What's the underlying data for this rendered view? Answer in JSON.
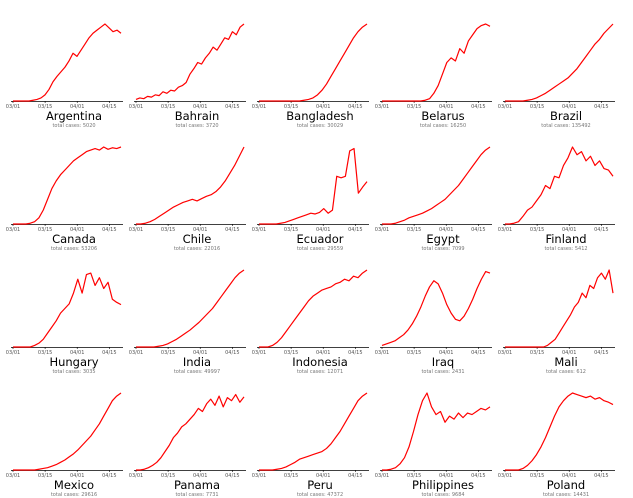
{
  "colors": {
    "line": "#ff0000",
    "axis": "#000000"
  },
  "chart_data": [
    {
      "type": "line",
      "title": "Argentina",
      "subtitle": "total cases: 5020",
      "xticks": [
        "03/01",
        "03/15",
        "04/01",
        "04/15"
      ],
      "ylim": [
        0,
        1
      ],
      "values": [
        0,
        0,
        0,
        0,
        0,
        0.01,
        0.02,
        0.04,
        0.08,
        0.15,
        0.25,
        0.32,
        0.38,
        0.44,
        0.52,
        0.62,
        0.58,
        0.66,
        0.74,
        0.82,
        0.88,
        0.92,
        0.96,
        1.0,
        0.95,
        0.9,
        0.92,
        0.88
      ]
    },
    {
      "type": "line",
      "title": "Bahrain",
      "subtitle": "total cases: 3720",
      "xticks": [
        "03/01",
        "03/15",
        "04/01",
        "04/15"
      ],
      "ylim": [
        0,
        1
      ],
      "values": [
        0.02,
        0.04,
        0.03,
        0.06,
        0.05,
        0.08,
        0.07,
        0.12,
        0.1,
        0.14,
        0.13,
        0.18,
        0.2,
        0.24,
        0.35,
        0.42,
        0.5,
        0.48,
        0.56,
        0.62,
        0.7,
        0.66,
        0.74,
        0.82,
        0.8,
        0.9,
        0.86,
        0.96,
        1.0
      ]
    },
    {
      "type": "line",
      "title": "Bangladesh",
      "subtitle": "total cases: 30029",
      "xticks": [
        "03/01",
        "03/15",
        "04/01",
        "04/15"
      ],
      "ylim": [
        0,
        1
      ],
      "values": [
        0,
        0,
        0,
        0,
        0,
        0,
        0,
        0,
        0,
        0,
        0.01,
        0.02,
        0.04,
        0.08,
        0.14,
        0.22,
        0.32,
        0.42,
        0.52,
        0.62,
        0.72,
        0.82,
        0.9,
        0.96,
        1.0
      ]
    },
    {
      "type": "line",
      "title": "Belarus",
      "subtitle": "total cases: 16250",
      "xticks": [
        "03/01",
        "03/15",
        "04/01",
        "04/15"
      ],
      "ylim": [
        0,
        1
      ],
      "values": [
        0,
        0,
        0,
        0,
        0,
        0,
        0,
        0,
        0,
        0,
        0.01,
        0.03,
        0.1,
        0.2,
        0.35,
        0.5,
        0.56,
        0.52,
        0.68,
        0.62,
        0.78,
        0.86,
        0.94,
        0.98,
        1.0,
        0.97
      ]
    },
    {
      "type": "line",
      "title": "Brazil",
      "subtitle": "total cases: 135492",
      "xticks": [
        "03/01",
        "03/15",
        "04/01",
        "04/15"
      ],
      "ylim": [
        0,
        1
      ],
      "values": [
        0,
        0,
        0,
        0,
        0,
        0.01,
        0.02,
        0.04,
        0.07,
        0.1,
        0.14,
        0.18,
        0.22,
        0.26,
        0.3,
        0.36,
        0.42,
        0.5,
        0.58,
        0.66,
        0.74,
        0.8,
        0.88,
        0.94,
        1.0
      ]
    },
    {
      "type": "line",
      "title": "Canada",
      "subtitle": "total cases: 53206",
      "xticks": [
        "03/01",
        "03/15",
        "04/01",
        "04/15"
      ],
      "ylim": [
        0,
        1
      ],
      "values": [
        0,
        0,
        0,
        0,
        0.01,
        0.03,
        0.08,
        0.18,
        0.32,
        0.46,
        0.56,
        0.64,
        0.7,
        0.76,
        0.82,
        0.86,
        0.9,
        0.94,
        0.96,
        0.98,
        0.96,
        1.0,
        0.97,
        0.99,
        0.98,
        1.0
      ]
    },
    {
      "type": "line",
      "title": "Chile",
      "subtitle": "total cases: 22016",
      "xticks": [
        "03/01",
        "03/15",
        "04/01",
        "04/15"
      ],
      "ylim": [
        0,
        1
      ],
      "values": [
        0,
        0,
        0.01,
        0.03,
        0.06,
        0.1,
        0.14,
        0.18,
        0.22,
        0.25,
        0.28,
        0.3,
        0.32,
        0.3,
        0.33,
        0.36,
        0.38,
        0.42,
        0.48,
        0.56,
        0.66,
        0.76,
        0.88,
        1.0
      ]
    },
    {
      "type": "line",
      "title": "Ecuador",
      "subtitle": "total cases: 29559",
      "xticks": [
        "03/01",
        "03/15",
        "04/01",
        "04/15"
      ],
      "ylim": [
        0,
        1
      ],
      "values": [
        0,
        0,
        0,
        0,
        0,
        0.01,
        0.02,
        0.04,
        0.06,
        0.08,
        0.1,
        0.12,
        0.14,
        0.13,
        0.15,
        0.2,
        0.14,
        0.18,
        0.62,
        0.6,
        0.62,
        0.95,
        0.98,
        0.4,
        0.48,
        0.55
      ]
    },
    {
      "type": "line",
      "title": "Egypt",
      "subtitle": "total cases: 7099",
      "xticks": [
        "03/01",
        "03/15",
        "04/01",
        "04/15"
      ],
      "ylim": [
        0,
        1
      ],
      "values": [
        0,
        0,
        0,
        0.01,
        0.03,
        0.05,
        0.08,
        0.1,
        0.12,
        0.14,
        0.17,
        0.2,
        0.24,
        0.28,
        0.32,
        0.38,
        0.44,
        0.5,
        0.58,
        0.66,
        0.74,
        0.82,
        0.9,
        0.96,
        1.0
      ]
    },
    {
      "type": "line",
      "title": "Finland",
      "subtitle": "total cases: 5412",
      "xticks": [
        "03/01",
        "03/15",
        "04/01",
        "04/15"
      ],
      "ylim": [
        0,
        1
      ],
      "values": [
        0,
        0,
        0.01,
        0.03,
        0.1,
        0.18,
        0.22,
        0.3,
        0.38,
        0.5,
        0.46,
        0.62,
        0.6,
        0.76,
        0.86,
        1.0,
        0.9,
        0.94,
        0.82,
        0.88,
        0.76,
        0.82,
        0.72,
        0.7,
        0.62
      ]
    },
    {
      "type": "line",
      "title": "Hungary",
      "subtitle": "total cases: 3035",
      "xticks": [
        "03/01",
        "03/15",
        "04/01",
        "04/15"
      ],
      "ylim": [
        0,
        1
      ],
      "values": [
        0,
        0,
        0,
        0,
        0,
        0.02,
        0.05,
        0.1,
        0.18,
        0.26,
        0.34,
        0.44,
        0.5,
        0.56,
        0.7,
        0.88,
        0.7,
        0.94,
        0.96,
        0.8,
        0.9,
        0.76,
        0.84,
        0.62,
        0.58,
        0.55
      ]
    },
    {
      "type": "line",
      "title": "India",
      "subtitle": "total cases: 49997",
      "xticks": [
        "03/01",
        "03/15",
        "04/01",
        "04/15"
      ],
      "ylim": [
        0,
        1
      ],
      "values": [
        0,
        0,
        0,
        0,
        0,
        0.01,
        0.02,
        0.04,
        0.07,
        0.1,
        0.14,
        0.18,
        0.22,
        0.27,
        0.32,
        0.38,
        0.44,
        0.5,
        0.58,
        0.66,
        0.74,
        0.82,
        0.9,
        0.96,
        1.0
      ]
    },
    {
      "type": "line",
      "title": "Indonesia",
      "subtitle": "total cases: 12071",
      "xticks": [
        "03/01",
        "03/15",
        "04/01",
        "04/15"
      ],
      "ylim": [
        0,
        1
      ],
      "values": [
        0,
        0,
        0,
        0.02,
        0.06,
        0.12,
        0.2,
        0.28,
        0.36,
        0.44,
        0.52,
        0.6,
        0.66,
        0.7,
        0.74,
        0.76,
        0.78,
        0.82,
        0.84,
        0.88,
        0.86,
        0.92,
        0.9,
        0.96,
        1.0
      ]
    },
    {
      "type": "line",
      "title": "Iraq",
      "subtitle": "total cases: 2431",
      "xticks": [
        "03/01",
        "03/15",
        "04/01",
        "04/15"
      ],
      "ylim": [
        0,
        1
      ],
      "values": [
        0.02,
        0.04,
        0.06,
        0.08,
        0.12,
        0.16,
        0.22,
        0.3,
        0.4,
        0.52,
        0.66,
        0.78,
        0.86,
        0.82,
        0.7,
        0.55,
        0.44,
        0.36,
        0.34,
        0.4,
        0.5,
        0.62,
        0.76,
        0.88,
        0.98,
        0.96
      ]
    },
    {
      "type": "line",
      "title": "Mali",
      "subtitle": "total cases: 612",
      "xticks": [
        "03/01",
        "03/15",
        "04/01",
        "04/15"
      ],
      "ylim": [
        0,
        1
      ],
      "values": [
        0,
        0,
        0,
        0,
        0,
        0,
        0,
        0,
        0,
        0,
        0,
        0.02,
        0.06,
        0.1,
        0.18,
        0.26,
        0.34,
        0.42,
        0.52,
        0.58,
        0.7,
        0.64,
        0.8,
        0.76,
        0.9,
        0.96,
        0.88,
        1.0,
        0.7
      ]
    },
    {
      "type": "line",
      "title": "Mexico",
      "subtitle": "total cases: 29616",
      "xticks": [
        "03/01",
        "03/15",
        "04/01",
        "04/15"
      ],
      "ylim": [
        0,
        1
      ],
      "values": [
        0,
        0,
        0,
        0,
        0,
        0,
        0.01,
        0.02,
        0.03,
        0.05,
        0.07,
        0.1,
        0.13,
        0.17,
        0.21,
        0.26,
        0.32,
        0.38,
        0.44,
        0.52,
        0.6,
        0.7,
        0.8,
        0.9,
        0.96,
        1.0
      ]
    },
    {
      "type": "line",
      "title": "Panama",
      "subtitle": "total cases: 7731",
      "xticks": [
        "03/01",
        "03/15",
        "04/01",
        "04/15"
      ],
      "ylim": [
        0,
        1
      ],
      "values": [
        0,
        0,
        0.01,
        0.03,
        0.06,
        0.1,
        0.16,
        0.24,
        0.32,
        0.42,
        0.48,
        0.56,
        0.6,
        0.66,
        0.72,
        0.8,
        0.76,
        0.86,
        0.92,
        0.84,
        0.96,
        0.82,
        0.94,
        0.9,
        0.98,
        0.88,
        0.95
      ]
    },
    {
      "type": "line",
      "title": "Peru",
      "subtitle": "total cases: 47372",
      "xticks": [
        "03/01",
        "03/15",
        "04/01",
        "04/15"
      ],
      "ylim": [
        0,
        1
      ],
      "values": [
        0,
        0,
        0,
        0,
        0.01,
        0.02,
        0.04,
        0.07,
        0.1,
        0.14,
        0.16,
        0.18,
        0.2,
        0.22,
        0.24,
        0.28,
        0.34,
        0.42,
        0.5,
        0.6,
        0.7,
        0.8,
        0.9,
        0.96,
        1.0
      ]
    },
    {
      "type": "line",
      "title": "Philippines",
      "subtitle": "total cases: 9684",
      "xticks": [
        "03/01",
        "03/15",
        "04/01",
        "04/15"
      ],
      "ylim": [
        0,
        1
      ],
      "values": [
        0,
        0,
        0.01,
        0.03,
        0.08,
        0.16,
        0.3,
        0.5,
        0.72,
        0.9,
        1.0,
        0.82,
        0.72,
        0.76,
        0.62,
        0.7,
        0.66,
        0.74,
        0.68,
        0.74,
        0.72,
        0.76,
        0.8,
        0.78,
        0.82
      ]
    },
    {
      "type": "line",
      "title": "Poland",
      "subtitle": "total cases: 14431",
      "xticks": [
        "03/01",
        "03/15",
        "04/01",
        "04/15"
      ],
      "ylim": [
        0,
        1
      ],
      "values": [
        0,
        0,
        0,
        0,
        0.02,
        0.06,
        0.12,
        0.2,
        0.3,
        0.42,
        0.56,
        0.7,
        0.82,
        0.9,
        0.96,
        1.0,
        0.98,
        0.96,
        0.94,
        0.96,
        0.92,
        0.94,
        0.9,
        0.88,
        0.85
      ]
    }
  ]
}
